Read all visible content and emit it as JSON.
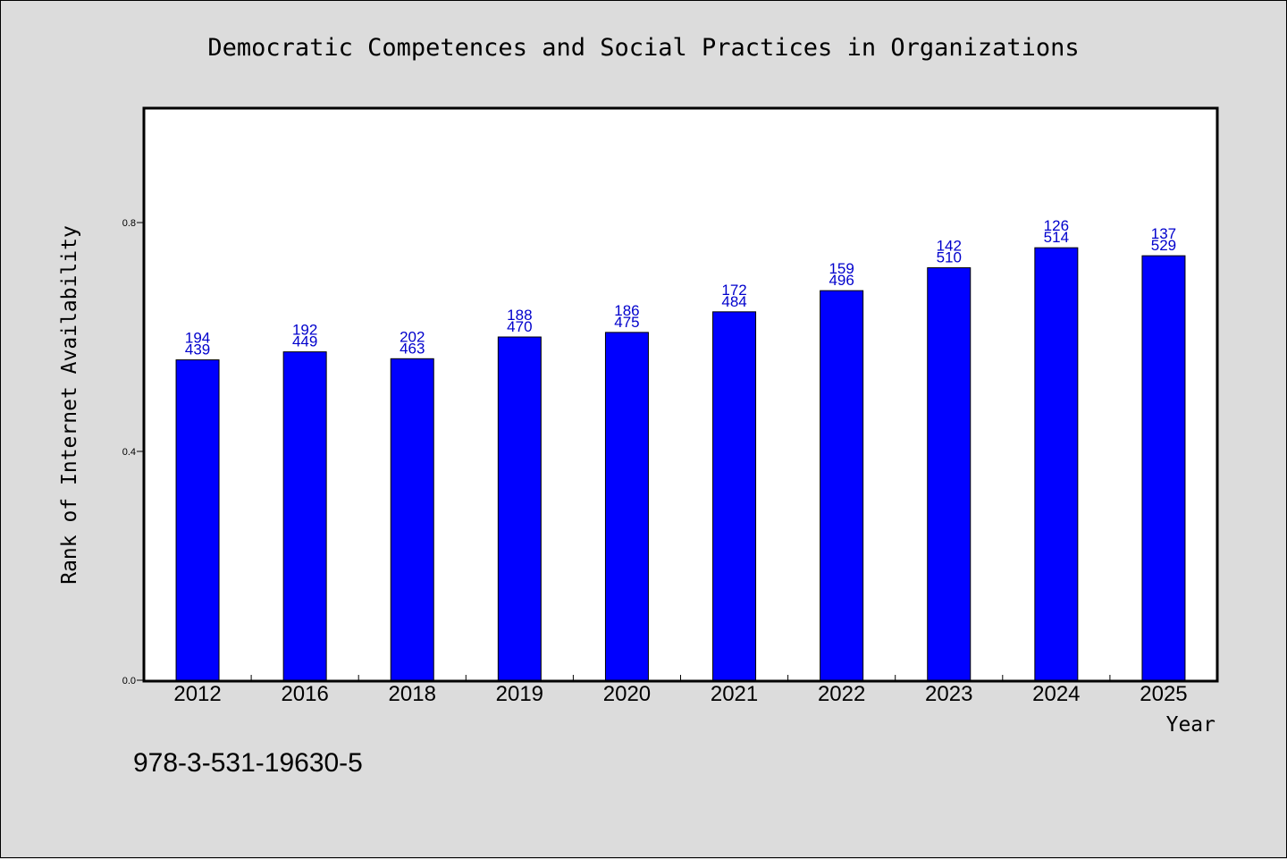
{
  "chart_data": {
    "type": "bar",
    "title": "Democratic Competences and Social Practices in Organizations",
    "xlabel": "Year",
    "ylabel": "Rank of Internet Availability",
    "categories": [
      "2012",
      "2016",
      "2018",
      "2019",
      "2020",
      "2021",
      "2022",
      "2023",
      "2024",
      "2025"
    ],
    "values": [
      0.56,
      0.574,
      0.562,
      0.6,
      0.608,
      0.644,
      0.681,
      0.721,
      0.756,
      0.742
    ],
    "data_labels": [
      [
        "194",
        "439"
      ],
      [
        "192",
        "449"
      ],
      [
        "202",
        "463"
      ],
      [
        "188",
        "470"
      ],
      [
        "186",
        "475"
      ],
      [
        "172",
        "484"
      ],
      [
        "159",
        "496"
      ],
      [
        "142",
        "510"
      ],
      [
        "126",
        "514"
      ],
      [
        "137",
        "529"
      ]
    ],
    "ylim": [
      0,
      1.0
    ],
    "yticks": [
      "0.0",
      "0.4",
      "0.8"
    ],
    "ytick_values": [
      0.0,
      0.4,
      0.8
    ],
    "bar_color": "#0000ff",
    "label_color": "#0000cc",
    "grid": false,
    "legend": "none"
  },
  "footer": {
    "isbn": "978-3-531-19630-5"
  }
}
